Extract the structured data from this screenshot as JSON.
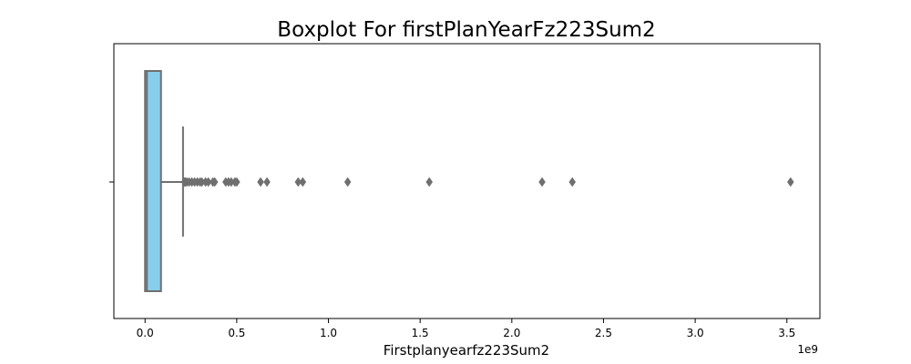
{
  "chart_data": {
    "type": "boxplot",
    "title": "Boxplot For firstPlanYearFz223Sum2",
    "xlabel": "Firstplanyearfz223Sum2",
    "ylabel": "",
    "x_offset_label": "1e9",
    "xlim": [
      -0.17,
      3.68
    ],
    "x_ticks": [
      0.0,
      0.5,
      1.0,
      1.5,
      2.0,
      2.5,
      3.0,
      3.5
    ],
    "x_tick_labels": [
      "0.0",
      "0.5",
      "1.0",
      "1.5",
      "2.0",
      "2.5",
      "3.0",
      "3.5"
    ],
    "grid": false,
    "box": {
      "whisker_low": 0.0,
      "q1": 0.0,
      "median": 0.01,
      "q3": 0.087,
      "whisker_high": 0.207,
      "fill_color": "#87CEEB",
      "line_color": "#6f6f6f"
    },
    "outliers": [
      0.215,
      0.22,
      0.228,
      0.24,
      0.255,
      0.27,
      0.285,
      0.3,
      0.31,
      0.33,
      0.345,
      0.37,
      0.38,
      0.44,
      0.455,
      0.47,
      0.49,
      0.5,
      0.63,
      0.665,
      0.835,
      0.86,
      1.105,
      1.55,
      2.165,
      2.33,
      3.52
    ],
    "unit_multiplier": 1000000000
  }
}
